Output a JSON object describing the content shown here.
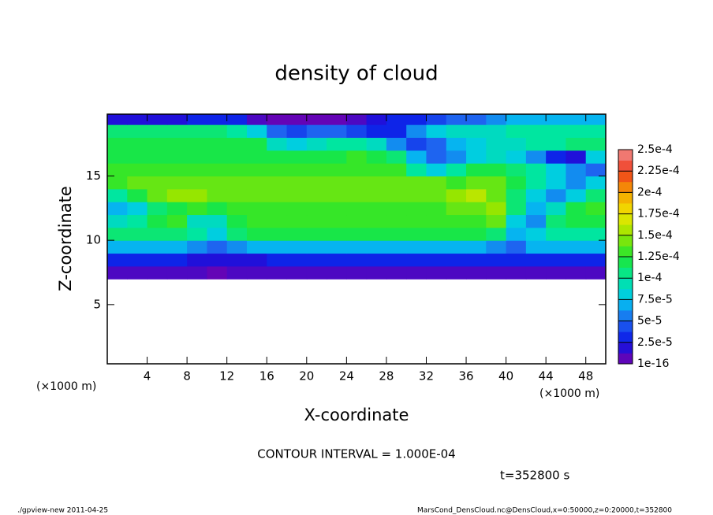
{
  "chart_data": {
    "type": "heatmap",
    "title": "density of cloud",
    "x_label": "X-coordinate",
    "y_label": "Z-coordinate",
    "x_unit": "(×1000 m)",
    "y_unit": "(×1000 m)",
    "contour_note": "CONTOUR INTERVAL = 1.000E-04",
    "time_note": "t=352800 s",
    "footer_left": "./gpview-new  2011-04-25",
    "footer_right": "MarsCond_DensCloud.nc@DensCloud,x=0:50000,z=0:20000,t=352800",
    "xlim": [
      0,
      50
    ],
    "ylim": [
      0.4,
      19.8
    ],
    "xticks": [
      4,
      8,
      12,
      16,
      20,
      24,
      28,
      32,
      36,
      40,
      44,
      48
    ],
    "yticks": [
      5,
      10,
      15
    ],
    "x": [
      1,
      3,
      5,
      7,
      9,
      11,
      13,
      15,
      17,
      19,
      21,
      23,
      25,
      27,
      29,
      31,
      33,
      35,
      37,
      39,
      41,
      43,
      45,
      47,
      49
    ],
    "z": [
      7.5,
      8.5,
      9.5,
      10.5,
      11.5,
      12.5,
      13.5,
      14.5,
      15.5,
      16.5,
      17.5,
      18.5,
      19.5
    ],
    "values": [
      [
        1e-05,
        1e-05,
        1e-05,
        1e-05,
        1e-05,
        5e-06,
        1e-05,
        1e-05,
        1e-05,
        1e-05,
        1e-05,
        1e-05,
        1e-05,
        1e-05,
        1e-05,
        1e-05,
        1e-05,
        1e-05,
        1e-05,
        1e-05,
        1e-05,
        1e-05,
        1e-05,
        1e-05,
        1e-05
      ],
      [
        3e-05,
        3e-05,
        3e-05,
        3e-05,
        2e-05,
        2e-05,
        2e-05,
        2e-05,
        3e-05,
        3e-05,
        3e-05,
        3e-05,
        3e-05,
        3e-05,
        3e-05,
        3e-05,
        3e-05,
        3e-05,
        3e-05,
        3e-05,
        3e-05,
        3e-05,
        3e-05,
        3e-05,
        3e-05
      ],
      [
        7e-05,
        7e-05,
        7e-05,
        7e-05,
        6e-05,
        5e-05,
        6e-05,
        7e-05,
        7e-05,
        7e-05,
        7e-05,
        7e-05,
        7e-05,
        7e-05,
        7e-05,
        7e-05,
        7e-05,
        7e-05,
        7e-05,
        6e-05,
        5e-05,
        7e-05,
        7e-05,
        7e-05,
        7e-05
      ],
      [
        0.00011,
        0.00011,
        0.00011,
        0.00011,
        0.0001,
        8e-05,
        0.00011,
        0.00012,
        0.00012,
        0.00012,
        0.00012,
        0.00012,
        0.00012,
        0.00012,
        0.00012,
        0.00012,
        0.00012,
        0.00012,
        0.00012,
        0.00011,
        7e-05,
        8e-05,
        0.0001,
        0.0001,
        0.0001
      ],
      [
        9e-05,
        0.0001,
        0.00012,
        0.00013,
        9e-05,
        9e-05,
        0.00012,
        0.00013,
        0.00013,
        0.00013,
        0.00013,
        0.00013,
        0.00013,
        0.00013,
        0.00013,
        0.00013,
        0.00013,
        0.00013,
        0.00013,
        0.00014,
        8e-05,
        6e-05,
        0.00011,
        0.00012,
        0.00012
      ],
      [
        7e-05,
        8e-05,
        0.00011,
        0.00012,
        0.00013,
        0.00012,
        0.00013,
        0.00013,
        0.00013,
        0.00013,
        0.00013,
        0.00013,
        0.00013,
        0.00013,
        0.00013,
        0.00013,
        0.00013,
        0.00014,
        0.00014,
        0.00015,
        0.00011,
        7e-05,
        9e-05,
        0.00012,
        0.00013
      ],
      [
        0.0001,
        0.00012,
        0.00014,
        0.00015,
        0.00015,
        0.00014,
        0.00014,
        0.00014,
        0.00014,
        0.00014,
        0.00014,
        0.00014,
        0.00014,
        0.00014,
        0.00014,
        0.00014,
        0.00014,
        0.00015,
        0.00016,
        0.00014,
        0.00011,
        8e-05,
        6e-05,
        8e-05,
        0.00011
      ],
      [
        0.00013,
        0.00014,
        0.00014,
        0.00014,
        0.00014,
        0.00014,
        0.00014,
        0.00014,
        0.00014,
        0.00014,
        0.00014,
        0.00014,
        0.00014,
        0.00014,
        0.00014,
        0.00014,
        0.00014,
        0.00013,
        0.00014,
        0.00014,
        0.00012,
        0.0001,
        8e-05,
        6e-05,
        8e-05
      ],
      [
        0.00013,
        0.00013,
        0.00013,
        0.00013,
        0.00013,
        0.00013,
        0.00013,
        0.00013,
        0.00013,
        0.00013,
        0.00013,
        0.00013,
        0.00013,
        0.00013,
        0.00013,
        0.0001,
        8e-05,
        0.0001,
        0.00012,
        0.00012,
        0.00011,
        0.0001,
        8e-05,
        6e-05,
        5e-05
      ],
      [
        0.00012,
        0.00012,
        0.00012,
        0.00012,
        0.00012,
        0.00012,
        0.00012,
        0.00012,
        0.00012,
        0.00012,
        0.00012,
        0.00012,
        0.00013,
        0.00012,
        0.00011,
        7e-05,
        5e-05,
        6e-05,
        8e-05,
        9e-05,
        8e-05,
        6e-05,
        3e-05,
        2e-05,
        8e-05
      ],
      [
        0.00012,
        0.00012,
        0.00012,
        0.00012,
        0.00012,
        0.00012,
        0.00012,
        0.00012,
        9e-05,
        8e-05,
        9e-05,
        0.0001,
        0.0001,
        9e-05,
        6e-05,
        4e-05,
        5e-05,
        7e-05,
        8e-05,
        9e-05,
        9e-05,
        0.0001,
        0.0001,
        0.00011,
        0.00011
      ],
      [
        0.00011,
        0.00011,
        0.00011,
        0.00011,
        0.00011,
        0.00011,
        0.0001,
        8e-05,
        5e-05,
        4e-05,
        5e-05,
        5e-05,
        4e-05,
        3e-05,
        3e-05,
        6e-05,
        8e-05,
        9e-05,
        9e-05,
        9e-05,
        0.0001,
        0.0001,
        0.0001,
        0.0001,
        0.0001
      ],
      [
        2e-05,
        2e-05,
        2e-05,
        2e-05,
        3e-05,
        3e-05,
        3e-05,
        1e-05,
        5e-06,
        5e-06,
        5e-06,
        5e-06,
        1e-05,
        2e-05,
        3e-05,
        3e-05,
        4e-05,
        5e-05,
        5e-05,
        6e-05,
        7e-05,
        7e-05,
        7e-05,
        7e-05,
        7e-05
      ]
    ],
    "colorbar_ticks": [
      {
        "value": 1e-16,
        "label": "1e-16"
      },
      {
        "value": 2.5e-05,
        "label": "2.5e-5"
      },
      {
        "value": 5e-05,
        "label": "5e-5"
      },
      {
        "value": 7.5e-05,
        "label": "7.5e-5"
      },
      {
        "value": 0.0001,
        "label": "1e-4"
      },
      {
        "value": 0.000125,
        "label": "1.25e-4"
      },
      {
        "value": 0.00015,
        "label": "1.5e-4"
      },
      {
        "value": 0.000175,
        "label": "1.75e-4"
      },
      {
        "value": 0.0002,
        "label": "2e-4"
      },
      {
        "value": 0.000225,
        "label": "2.25e-4"
      },
      {
        "value": 0.00025,
        "label": "2.5e-4"
      }
    ],
    "colors": [
      "#7a00aa",
      "#0a14e6",
      "#1e64f0",
      "#00c8f0",
      "#00e6a0",
      "#1ee632",
      "#96e600",
      "#f0e600",
      "#f5a000",
      "#f03c1e",
      "#f08c8c"
    ]
  }
}
